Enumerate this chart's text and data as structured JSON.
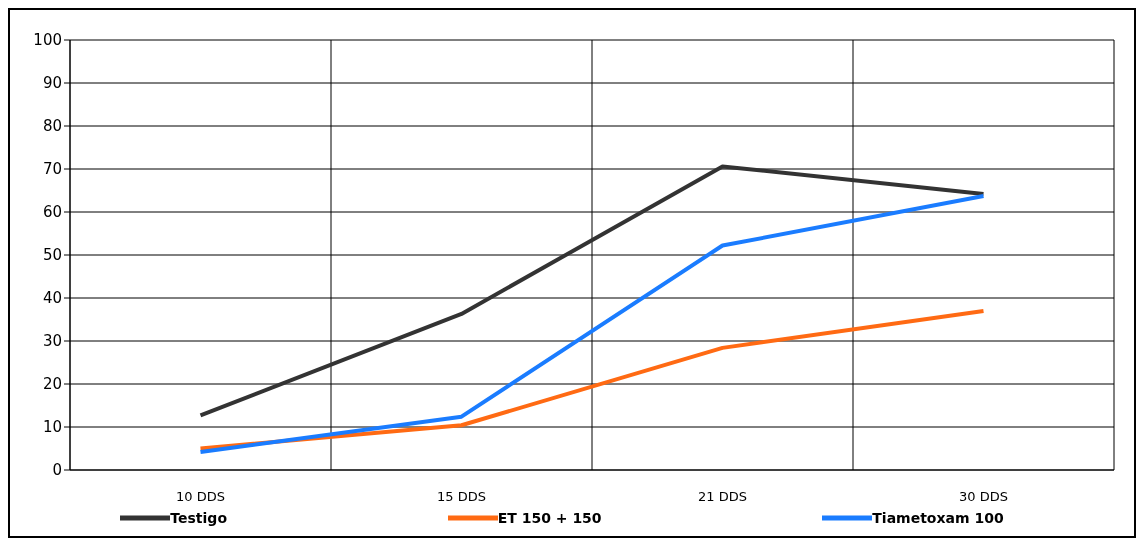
{
  "chart_data": {
    "type": "line",
    "categories": [
      "10 DDS",
      "15 DDS",
      "21 DDS",
      "30 DDS"
    ],
    "series": [
      {
        "name": "Testigo",
        "color": "#333333",
        "values": [
          12.7,
          36.3,
          70.6,
          64.2
        ]
      },
      {
        "name": "ET 150 + 150",
        "color": "#ff6a13",
        "values": [
          5,
          10.4,
          28.4,
          37
        ]
      },
      {
        "name": "Tiametoxam 100",
        "color": "#1a7cff",
        "values": [
          4.2,
          12.4,
          52.2,
          63.7
        ]
      }
    ],
    "ylim": [
      0,
      100
    ],
    "yticks": [
      0,
      10,
      20,
      30,
      40,
      50,
      60,
      70,
      80,
      90,
      100
    ],
    "grid": true,
    "legend": "bottom",
    "marker": "none",
    "line_style": "solid"
  }
}
